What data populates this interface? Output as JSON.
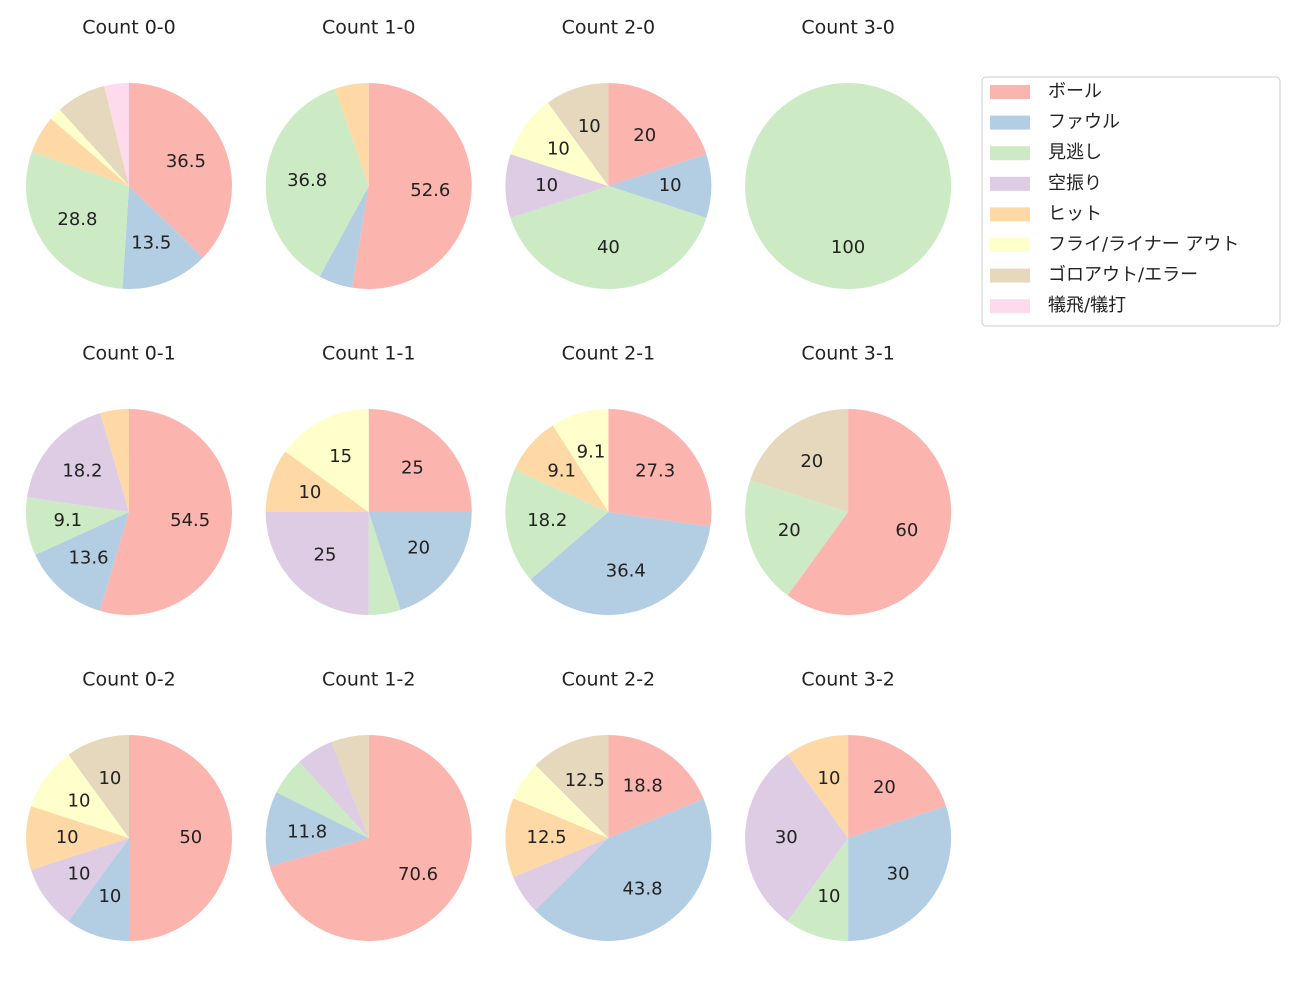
{
  "legend": {
    "labels": [
      "ボール",
      "ファウル",
      "見逃し",
      "空振り",
      "ヒット",
      "フライ/ライナー アウト",
      "ゴロアウト/エラー",
      "犠飛/犠打"
    ],
    "colors": [
      "#fbb4ae",
      "#b3cde3",
      "#ccebc5",
      "#decbe4",
      "#fed9a6",
      "#ffffcc",
      "#e5d8bd",
      "#fddaec"
    ]
  },
  "chart_data": [
    {
      "type": "pie",
      "title": "Count 0-0",
      "values": [
        36.5,
        13.5,
        28.8,
        0,
        5.8,
        1.9,
        7.7,
        3.8
      ]
    },
    {
      "type": "pie",
      "title": "Count 1-0",
      "values": [
        52.6,
        5.3,
        36.8,
        0,
        5.3,
        0,
        0,
        0
      ]
    },
    {
      "type": "pie",
      "title": "Count 2-0",
      "values": [
        20.0,
        10.0,
        40.0,
        10.0,
        0,
        10.0,
        10.0,
        0
      ]
    },
    {
      "type": "pie",
      "title": "Count 3-0",
      "values": [
        0,
        0,
        100.0,
        0,
        0,
        0,
        0,
        0
      ]
    },
    {
      "type": "pie",
      "title": "Count 0-1",
      "values": [
        54.5,
        13.6,
        9.1,
        18.2,
        4.5,
        0,
        0,
        0
      ]
    },
    {
      "type": "pie",
      "title": "Count 1-1",
      "values": [
        25.0,
        20.0,
        5.0,
        25.0,
        10.0,
        15.0,
        0,
        0
      ]
    },
    {
      "type": "pie",
      "title": "Count 2-1",
      "values": [
        27.3,
        36.4,
        18.2,
        0,
        9.1,
        9.1,
        0,
        0
      ]
    },
    {
      "type": "pie",
      "title": "Count 3-1",
      "values": [
        60.0,
        0,
        20.0,
        0,
        0,
        0,
        20.0,
        0
      ]
    },
    {
      "type": "pie",
      "title": "Count 0-2",
      "values": [
        50.0,
        10.0,
        0,
        10.0,
        10.0,
        10.0,
        10.0,
        0
      ]
    },
    {
      "type": "pie",
      "title": "Count 1-2",
      "values": [
        70.6,
        11.8,
        5.9,
        5.9,
        0,
        0,
        5.9,
        0
      ]
    },
    {
      "type": "pie",
      "title": "Count 2-2",
      "values": [
        18.8,
        43.8,
        0,
        6.2,
        12.5,
        6.2,
        12.5,
        0
      ]
    },
    {
      "type": "pie",
      "title": "Count 3-2",
      "values": [
        20.0,
        30.0,
        10.0,
        30.0,
        10.0,
        0,
        0,
        0
      ]
    }
  ]
}
